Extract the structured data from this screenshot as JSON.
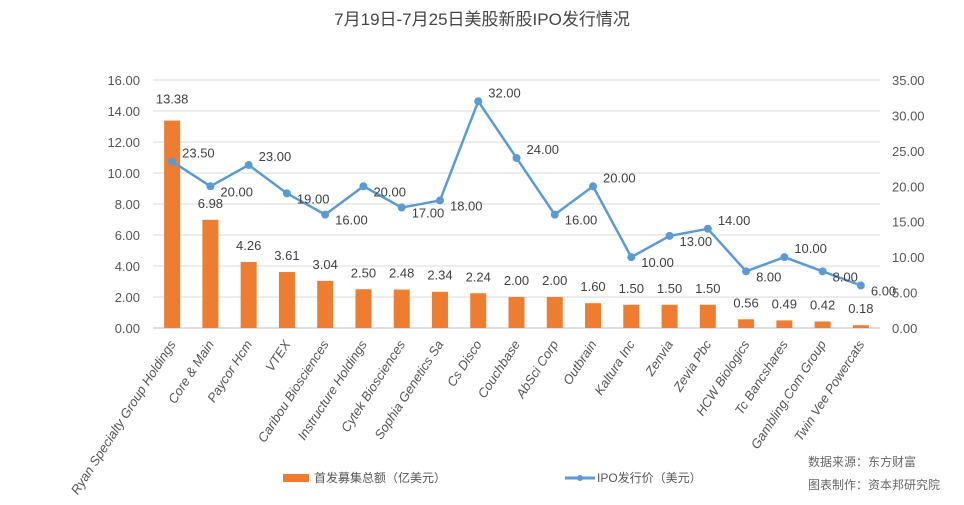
{
  "chart_data": {
    "type": "bar+line",
    "title": "7月19日-7月25日美股新股IPO发行情况",
    "categories": [
      "Ryan Specialty Group Holdings",
      "Core & Main",
      "Paycor Hcm",
      "VTEX",
      "Caribou Biosciences",
      "Instructure Holdings",
      "Cytek Biosciences",
      "Sophia Genetics Sa",
      "Cs Disco",
      "Couchbase",
      "AbSci Corp",
      "Outbrain",
      "Kaltura Inc",
      "Zenvia",
      "Zevia Pbc",
      "HCW Biologics",
      "Tc Bancshares",
      "Gambling.Com Group",
      "Twin Vee Powercats"
    ],
    "series": [
      {
        "name": "首发募集总额（亿美元）",
        "type": "bar",
        "axis": "left",
        "color": "#ED7D31",
        "values": [
          13.38,
          6.98,
          4.26,
          3.61,
          3.04,
          2.5,
          2.48,
          2.34,
          2.24,
          2.0,
          2.0,
          1.6,
          1.5,
          1.5,
          1.5,
          0.56,
          0.49,
          0.42,
          0.18
        ]
      },
      {
        "name": "IPO发行价（美元）",
        "type": "line",
        "axis": "right",
        "color": "#5B9BD5",
        "values": [
          23.5,
          20,
          23,
          19,
          16,
          20,
          17,
          18,
          32,
          24,
          16,
          20,
          10,
          13,
          14,
          8,
          10,
          8,
          6
        ]
      }
    ],
    "left_axis": {
      "ylim": [
        0,
        16
      ],
      "step": 2,
      "ticks": [
        "0.00",
        "2.00",
        "4.00",
        "6.00",
        "8.00",
        "10.00",
        "12.00",
        "14.00",
        "16.00"
      ]
    },
    "right_axis": {
      "ylim": [
        0,
        35
      ],
      "step": 5,
      "ticks": [
        "0.00",
        "5.00",
        "10.00",
        "15.00",
        "20.00",
        "25.00",
        "30.00",
        "35.00"
      ]
    },
    "grid": true,
    "legend": "bottom"
  },
  "notes": {
    "source": "数据来源：东方财富",
    "maker": "图表制作：资本邦研究院"
  }
}
